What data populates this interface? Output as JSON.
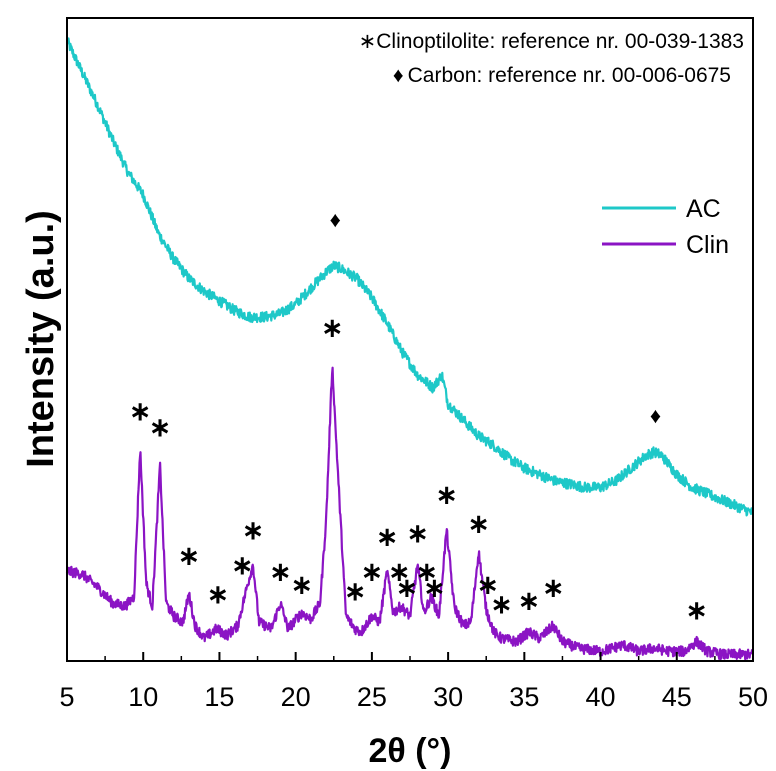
{
  "chart_data": {
    "type": "line",
    "xlabel": "2θ (°)",
    "ylabel": "Intensity (a.u.)",
    "xlim": [
      5,
      50
    ],
    "ylim": [
      0,
      100
    ],
    "x_ticks": [
      "5",
      "10",
      "15",
      "20",
      "25",
      "30",
      "35",
      "40",
      "45",
      "50"
    ],
    "y_ticks_shown": false,
    "grid": false,
    "legend_position": "right",
    "references": [
      {
        "symbol": "∗",
        "text": "Clinoptilolite: reference nr. 00-039-1383"
      },
      {
        "symbol": "♦",
        "text": "Carbon: reference nr. 00-006-0675"
      }
    ],
    "series": [
      {
        "name": "AC",
        "color": "#1EC8C8",
        "points": [
          [
            5.0,
            96.5
          ],
          [
            6.0,
            91.5
          ],
          [
            7.0,
            86.5
          ],
          [
            8.0,
            81.0
          ],
          [
            9.0,
            76.0
          ],
          [
            10.0,
            72.5
          ],
          [
            11.0,
            66.5
          ],
          [
            12.0,
            62.5
          ],
          [
            13.0,
            59.5
          ],
          [
            14.0,
            57.5
          ],
          [
            15.0,
            56.0
          ],
          [
            16.0,
            54.5
          ],
          [
            17.0,
            53.5
          ],
          [
            18.0,
            53.5
          ],
          [
            19.0,
            54.0
          ],
          [
            20.0,
            55.5
          ],
          [
            21.0,
            58.0
          ],
          [
            22.0,
            60.5
          ],
          [
            22.5,
            61.5
          ],
          [
            23.0,
            61.0
          ],
          [
            24.0,
            59.5
          ],
          [
            25.0,
            56.5
          ],
          [
            26.0,
            52.5
          ],
          [
            27.0,
            48.0
          ],
          [
            28.0,
            44.5
          ],
          [
            29.0,
            42.5
          ],
          [
            29.6,
            44.5
          ],
          [
            30.0,
            40.0
          ],
          [
            31.0,
            37.5
          ],
          [
            32.0,
            35.0
          ],
          [
            33.0,
            33.5
          ],
          [
            34.0,
            31.5
          ],
          [
            35.0,
            30.0
          ],
          [
            36.0,
            29.0
          ],
          [
            37.0,
            28.0
          ],
          [
            38.0,
            27.5
          ],
          [
            39.0,
            27.0
          ],
          [
            40.0,
            27.0
          ],
          [
            41.0,
            28.0
          ],
          [
            42.0,
            30.0
          ],
          [
            43.0,
            32.0
          ],
          [
            43.5,
            32.5
          ],
          [
            44.0,
            32.0
          ],
          [
            45.0,
            29.0
          ],
          [
            46.0,
            27.0
          ],
          [
            47.0,
            26.0
          ],
          [
            48.0,
            25.0
          ],
          [
            49.0,
            24.0
          ],
          [
            50.0,
            23.0
          ]
        ]
      },
      {
        "name": "Clin",
        "color": "#8B14C4",
        "points": [
          [
            5.0,
            14.0
          ],
          [
            6.0,
            13.5
          ],
          [
            7.0,
            11.5
          ],
          [
            8.0,
            9.0
          ],
          [
            8.8,
            8.5
          ],
          [
            9.4,
            10.0
          ],
          [
            9.8,
            33.0
          ],
          [
            10.2,
            12.0
          ],
          [
            10.6,
            8.5
          ],
          [
            11.1,
            30.5
          ],
          [
            11.5,
            9.0
          ],
          [
            12.0,
            7.0
          ],
          [
            12.6,
            6.0
          ],
          [
            13.0,
            10.5
          ],
          [
            13.4,
            5.5
          ],
          [
            14.0,
            3.5
          ],
          [
            14.8,
            5.0
          ],
          [
            15.5,
            4.0
          ],
          [
            16.2,
            5.5
          ],
          [
            16.8,
            11.5
          ],
          [
            17.2,
            15.0
          ],
          [
            17.6,
            6.0
          ],
          [
            18.4,
            5.0
          ],
          [
            19.0,
            9.0
          ],
          [
            19.5,
            5.0
          ],
          [
            20.4,
            7.5
          ],
          [
            21.0,
            6.5
          ],
          [
            21.6,
            9.0
          ],
          [
            22.0,
            22.0
          ],
          [
            22.4,
            46.0
          ],
          [
            22.8,
            28.0
          ],
          [
            23.3,
            7.0
          ],
          [
            23.9,
            5.0
          ],
          [
            24.3,
            4.5
          ],
          [
            25.0,
            7.0
          ],
          [
            25.5,
            6.0
          ],
          [
            26.0,
            14.0
          ],
          [
            26.4,
            7.5
          ],
          [
            26.9,
            8.5
          ],
          [
            27.5,
            7.0
          ],
          [
            28.0,
            15.0
          ],
          [
            28.4,
            7.5
          ],
          [
            28.9,
            10.0
          ],
          [
            29.4,
            7.0
          ],
          [
            29.9,
            20.5
          ],
          [
            30.4,
            8.5
          ],
          [
            31.0,
            5.5
          ],
          [
            31.5,
            6.0
          ],
          [
            32.0,
            17.0
          ],
          [
            32.5,
            8.0
          ],
          [
            33.0,
            4.5
          ],
          [
            33.5,
            3.5
          ],
          [
            34.5,
            3.0
          ],
          [
            35.3,
            4.5
          ],
          [
            36.0,
            3.5
          ],
          [
            36.9,
            5.5
          ],
          [
            37.5,
            3.0
          ],
          [
            38.5,
            2.0
          ],
          [
            40.0,
            1.5
          ],
          [
            41.5,
            2.5
          ],
          [
            42.5,
            1.5
          ],
          [
            43.5,
            2.0
          ],
          [
            44.5,
            1.5
          ],
          [
            45.5,
            1.5
          ],
          [
            46.3,
            3.0
          ],
          [
            47.0,
            1.5
          ],
          [
            48.0,
            1.0
          ],
          [
            49.0,
            1.0
          ],
          [
            50.0,
            1.0
          ]
        ]
      }
    ],
    "annotations": [
      {
        "symbol": "♦",
        "x": 22.6,
        "y": 67.5
      },
      {
        "symbol": "♦",
        "x": 43.6,
        "y": 37.0
      },
      {
        "symbol": "∗",
        "x": 9.8,
        "y": 37.5
      },
      {
        "symbol": "∗",
        "x": 11.1,
        "y": 35.0
      },
      {
        "symbol": "∗",
        "x": 13.0,
        "y": 15.0
      },
      {
        "symbol": "∗",
        "x": 14.9,
        "y": 9.0
      },
      {
        "symbol": "∗",
        "x": 16.5,
        "y": 13.5
      },
      {
        "symbol": "∗",
        "x": 17.2,
        "y": 19.0
      },
      {
        "symbol": "∗",
        "x": 19.0,
        "y": 12.5
      },
      {
        "symbol": "∗",
        "x": 20.4,
        "y": 10.5
      },
      {
        "symbol": "∗",
        "x": 22.4,
        "y": 50.5
      },
      {
        "symbol": "∗",
        "x": 23.9,
        "y": 9.5
      },
      {
        "symbol": "∗",
        "x": 25.0,
        "y": 12.5
      },
      {
        "symbol": "∗",
        "x": 26.0,
        "y": 18.0
      },
      {
        "symbol": "∗",
        "x": 26.8,
        "y": 12.5
      },
      {
        "symbol": "∗",
        "x": 27.3,
        "y": 10.0
      },
      {
        "symbol": "∗",
        "x": 28.0,
        "y": 18.5
      },
      {
        "symbol": "∗",
        "x": 28.6,
        "y": 12.5
      },
      {
        "symbol": "∗",
        "x": 29.1,
        "y": 10.0
      },
      {
        "symbol": "∗",
        "x": 29.9,
        "y": 24.5
      },
      {
        "symbol": "∗",
        "x": 32.0,
        "y": 20.0
      },
      {
        "symbol": "∗",
        "x": 32.6,
        "y": 10.5
      },
      {
        "symbol": "∗",
        "x": 33.5,
        "y": 7.5
      },
      {
        "symbol": "∗",
        "x": 35.3,
        "y": 8.0
      },
      {
        "symbol": "∗",
        "x": 36.9,
        "y": 10.0
      },
      {
        "symbol": "∗",
        "x": 46.3,
        "y": 6.5
      }
    ]
  }
}
